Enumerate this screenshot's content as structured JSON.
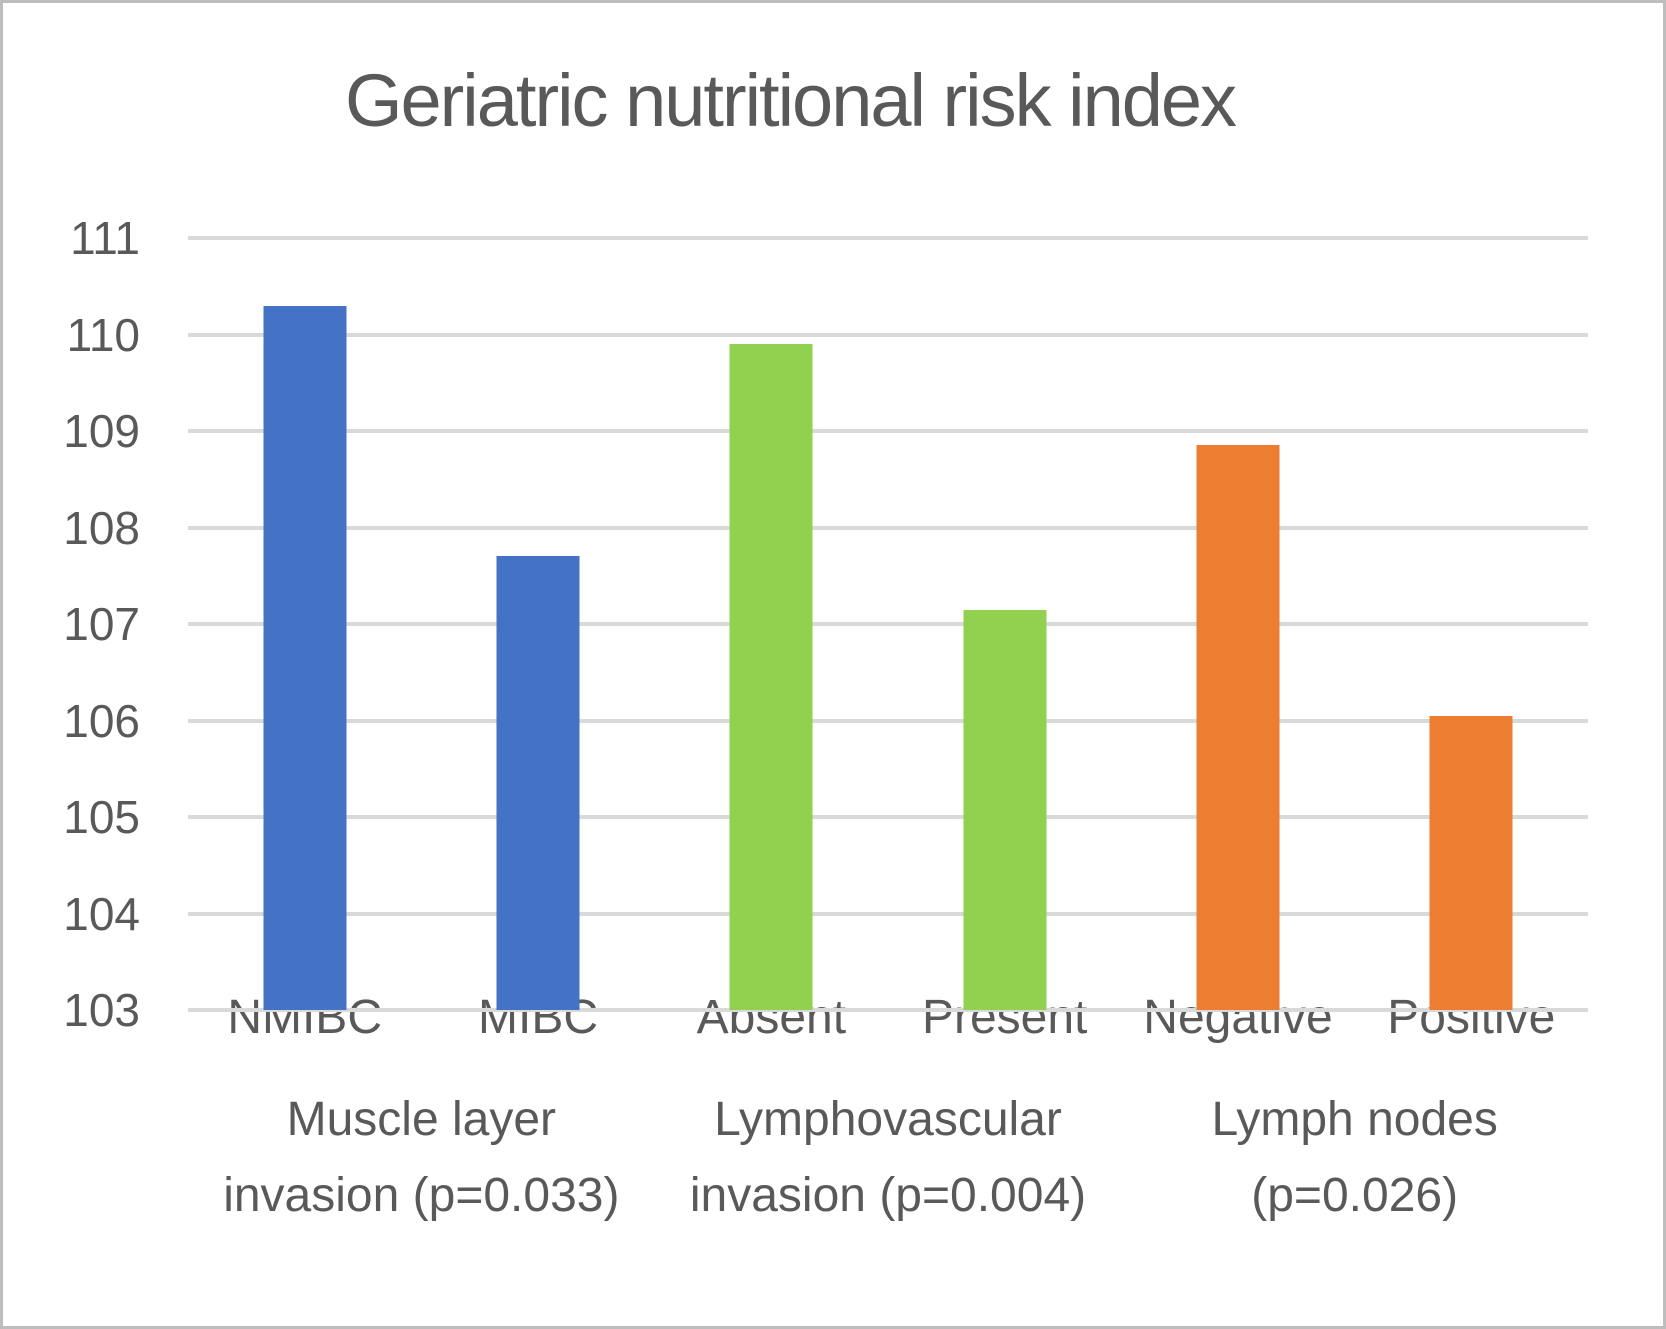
{
  "figure": {
    "background": "#FFFFFF",
    "border_color": "#BDBDBD",
    "text_color": "#595959",
    "gridline_color": "#D9D9D9"
  },
  "chart_data": {
    "type": "bar",
    "title": "Geriatric nutritional risk index",
    "categories": [
      "NMIBC",
      "MIBC",
      "Absent",
      "Present",
      "Negative",
      "Positive"
    ],
    "values": [
      110.3,
      107.7,
      109.9,
      107.15,
      108.85,
      106.05
    ],
    "bar_colors": [
      "#4472C4",
      "#4472C4",
      "#92D050",
      "#92D050",
      "#ED7D31",
      "#ED7D31"
    ],
    "groups": [
      {
        "line1": "Muscle layer",
        "line2": "invasion (p=0.033)"
      },
      {
        "line1": "Lymphovascular",
        "line2": "invasion (p=0.004)"
      },
      {
        "line1": "Lymph nodes",
        "line2": "(p=0.026)"
      }
    ],
    "xlabel": "",
    "ylabel": "",
    "ylim": [
      103,
      111
    ],
    "yticks": [
      111,
      110,
      109,
      108,
      107,
      106,
      105,
      104,
      103
    ],
    "grid": true,
    "legend": false
  }
}
